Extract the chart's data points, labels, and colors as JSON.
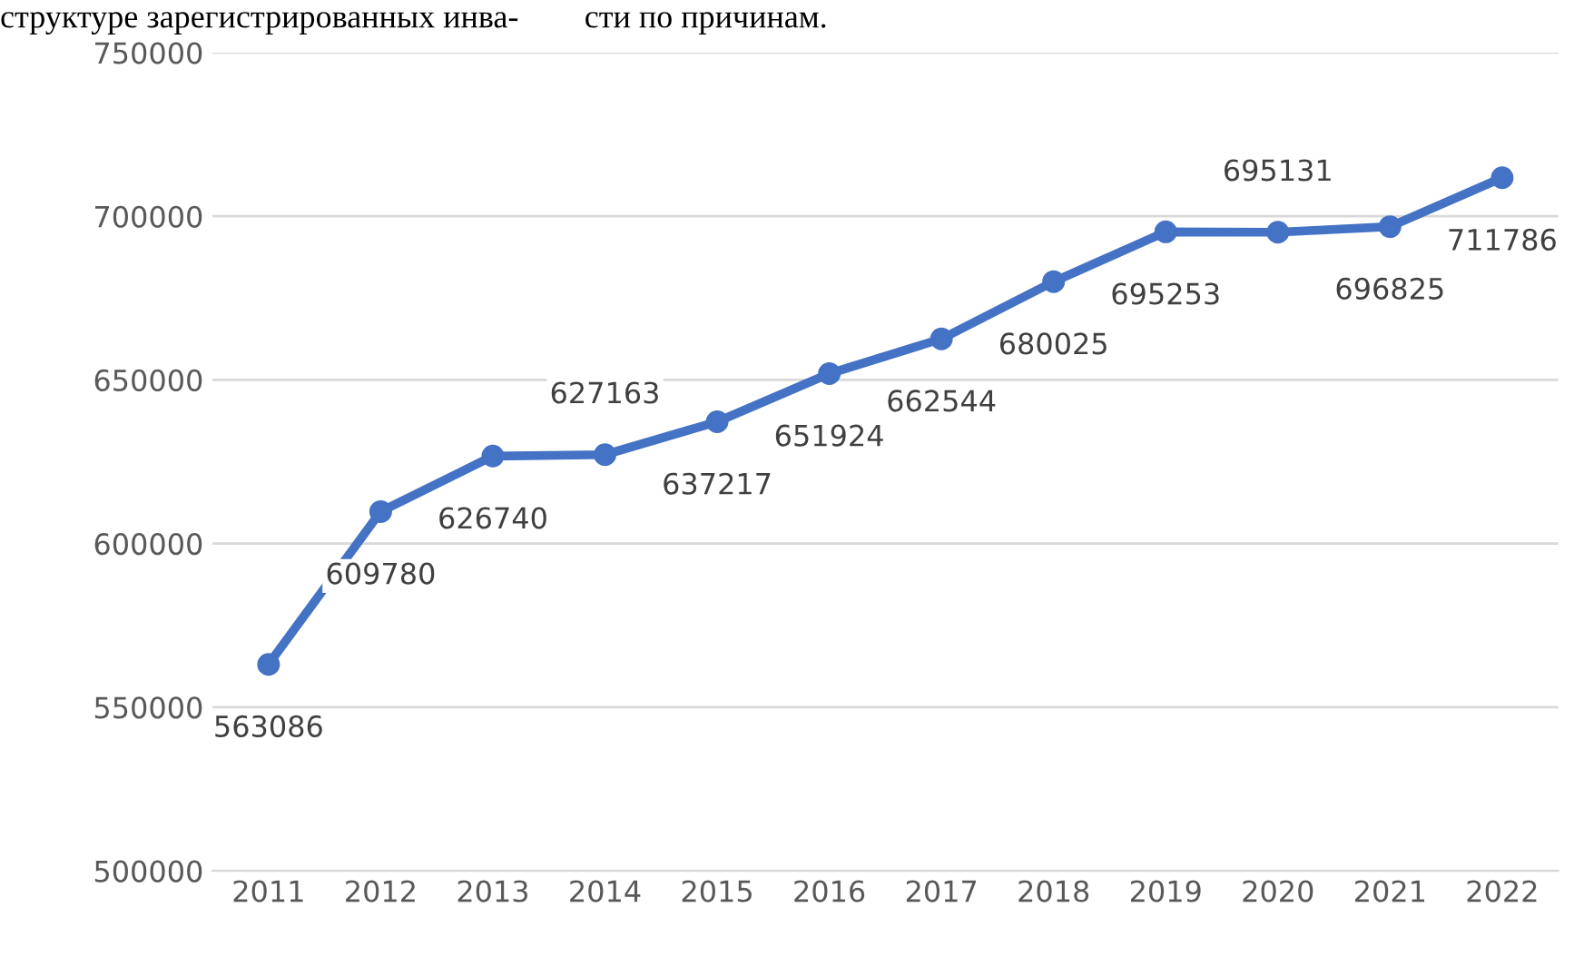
{
  "chart_data": {
    "type": "line",
    "categories": [
      "2011",
      "2012",
      "2013",
      "2014",
      "2015",
      "2016",
      "2017",
      "2018",
      "2019",
      "2020",
      "2021",
      "2022"
    ],
    "series": [
      {
        "color": "#4472c4",
        "values": [
          563086,
          609780,
          626740,
          627163,
          637217,
          651924,
          662544,
          680025,
          695253,
          695131,
          696825,
          711786
        ]
      }
    ],
    "ylim": [
      500000,
      750000
    ],
    "yticks": [
      500000,
      550000,
      600000,
      650000,
      700000,
      750000
    ],
    "grid": "y",
    "marker": "circle",
    "line_style": "solid",
    "data_labels": true,
    "legend": false,
    "annotations": [
      "структуре зарегистрированных инва-        сти по причинам."
    ]
  }
}
